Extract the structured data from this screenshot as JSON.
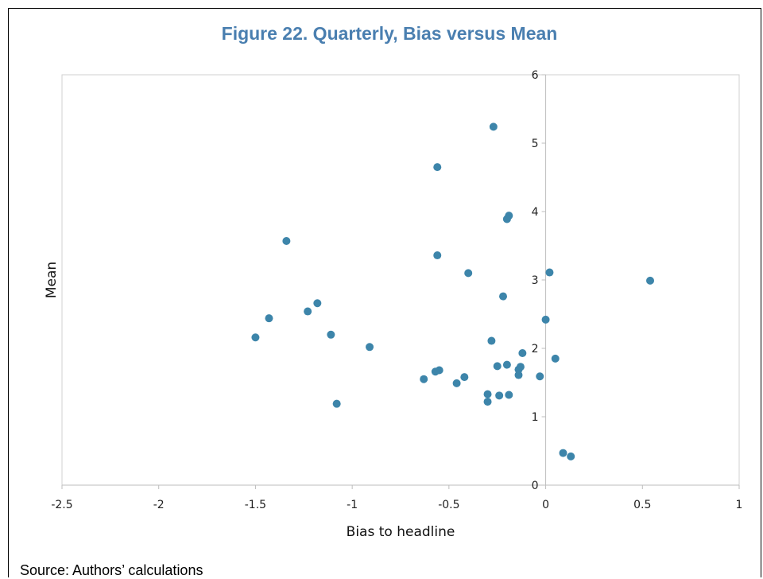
{
  "page": {
    "title": "Figure 22. Quarterly, Bias versus Mean",
    "source": "Source: Authors’ calculations"
  },
  "chart_data": {
    "type": "scatter",
    "title": "Figure 22. Quarterly, Bias versus Mean",
    "xlabel": "Bias to headline",
    "ylabel": "Mean",
    "xlim": [
      -2.5,
      1
    ],
    "ylim": [
      0,
      6
    ],
    "xticks": [
      -2.5,
      -2,
      -1.5,
      -1,
      -0.5,
      0,
      0.5,
      1
    ],
    "yticks": [
      0,
      1,
      2,
      3,
      4,
      5,
      6
    ],
    "xtick_labels": [
      "-2.5",
      "-2",
      "-1.5",
      "-1",
      "-0.5",
      "0",
      "0.5",
      "1"
    ],
    "ytick_labels": [
      "0",
      "1",
      "2",
      "3",
      "4",
      "5",
      "6"
    ],
    "grid": false,
    "marker_color": "#3d85aa",
    "points": [
      {
        "x": -0.27,
        "y": 5.24
      },
      {
        "x": -0.56,
        "y": 4.65
      },
      {
        "x": -0.19,
        "y": 3.94
      },
      {
        "x": -0.2,
        "y": 3.89
      },
      {
        "x": -1.34,
        "y": 3.57
      },
      {
        "x": -0.56,
        "y": 3.36
      },
      {
        "x": -0.4,
        "y": 3.1
      },
      {
        "x": 0.02,
        "y": 3.11
      },
      {
        "x": 0.54,
        "y": 2.99
      },
      {
        "x": -0.22,
        "y": 2.76
      },
      {
        "x": -1.18,
        "y": 2.66
      },
      {
        "x": -1.23,
        "y": 2.54
      },
      {
        "x": -1.43,
        "y": 2.44
      },
      {
        "x": 0.0,
        "y": 2.42
      },
      {
        "x": -1.11,
        "y": 2.2
      },
      {
        "x": -1.5,
        "y": 2.16
      },
      {
        "x": -0.28,
        "y": 2.11
      },
      {
        "x": -0.91,
        "y": 2.02
      },
      {
        "x": -0.12,
        "y": 1.93
      },
      {
        "x": 0.05,
        "y": 1.85
      },
      {
        "x": -0.2,
        "y": 1.76
      },
      {
        "x": -0.25,
        "y": 1.74
      },
      {
        "x": -0.13,
        "y": 1.73
      },
      {
        "x": -0.14,
        "y": 1.69
      },
      {
        "x": -0.55,
        "y": 1.68
      },
      {
        "x": -0.57,
        "y": 1.66
      },
      {
        "x": -0.14,
        "y": 1.61
      },
      {
        "x": -0.03,
        "y": 1.59
      },
      {
        "x": -0.42,
        "y": 1.58
      },
      {
        "x": -0.63,
        "y": 1.55
      },
      {
        "x": -0.46,
        "y": 1.49
      },
      {
        "x": -0.3,
        "y": 1.33
      },
      {
        "x": -0.24,
        "y": 1.31
      },
      {
        "x": -0.19,
        "y": 1.32
      },
      {
        "x": -0.3,
        "y": 1.22
      },
      {
        "x": -1.08,
        "y": 1.19
      },
      {
        "x": 0.09,
        "y": 0.47
      },
      {
        "x": 0.13,
        "y": 0.42
      }
    ]
  }
}
